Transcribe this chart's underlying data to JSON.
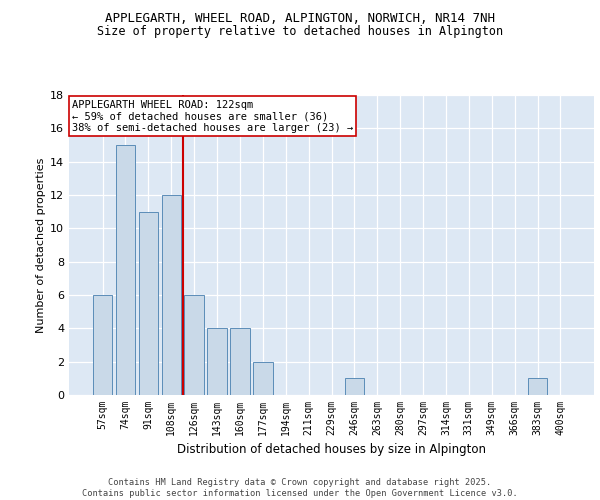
{
  "title_line1": "APPLEGARTH, WHEEL ROAD, ALPINGTON, NORWICH, NR14 7NH",
  "title_line2": "Size of property relative to detached houses in Alpington",
  "categories": [
    "57sqm",
    "74sqm",
    "91sqm",
    "108sqm",
    "126sqm",
    "143sqm",
    "160sqm",
    "177sqm",
    "194sqm",
    "211sqm",
    "229sqm",
    "246sqm",
    "263sqm",
    "280sqm",
    "297sqm",
    "314sqm",
    "331sqm",
    "349sqm",
    "366sqm",
    "383sqm",
    "400sqm"
  ],
  "values": [
    6,
    15,
    11,
    12,
    6,
    4,
    4,
    2,
    0,
    0,
    0,
    1,
    0,
    0,
    0,
    0,
    0,
    0,
    0,
    1,
    0
  ],
  "bar_color": "#c9d9e8",
  "bar_edge_color": "#5b8db8",
  "ylabel": "Number of detached properties",
  "xlabel": "Distribution of detached houses by size in Alpington",
  "ylim": [
    0,
    18
  ],
  "yticks": [
    0,
    2,
    4,
    6,
    8,
    10,
    12,
    14,
    16,
    18
  ],
  "property_label": "APPLEGARTH WHEEL ROAD: 122sqm",
  "annotation_line1": "← 59% of detached houses are smaller (36)",
  "annotation_line2": "38% of semi-detached houses are larger (23) →",
  "vline_color": "#cc0000",
  "vline_position": 3.5,
  "annotation_box_color": "#ffffff",
  "annotation_box_edge": "#cc0000",
  "background_color": "#dde8f4",
  "footer_text": "Contains HM Land Registry data © Crown copyright and database right 2025.\nContains public sector information licensed under the Open Government Licence v3.0.",
  "title_fontsize": 9,
  "subtitle_fontsize": 8.5,
  "axis_label_fontsize": 8,
  "tick_fontsize": 7,
  "annotation_fontsize": 7.5,
  "footer_fontsize": 6.2
}
